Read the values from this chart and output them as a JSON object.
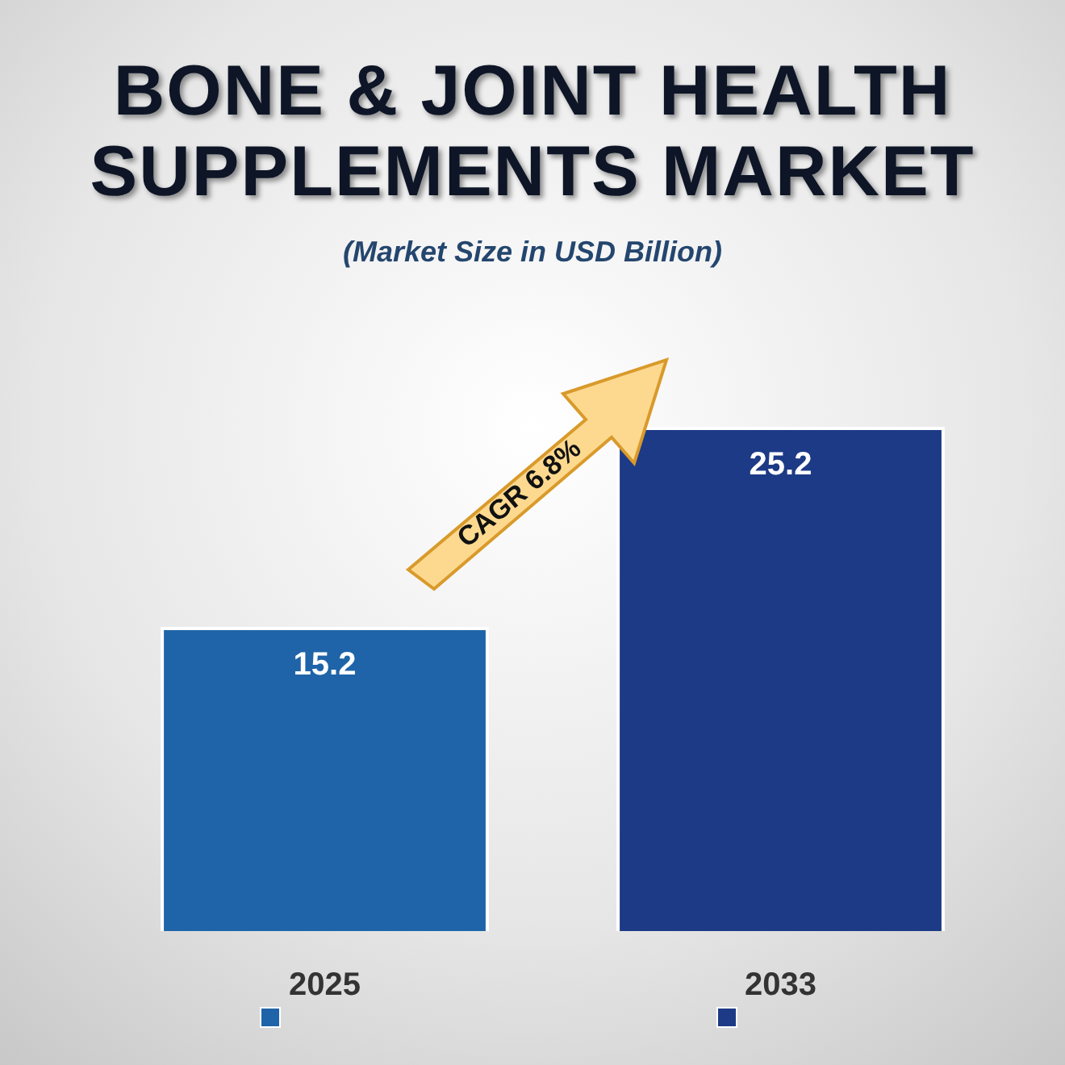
{
  "chart_data": {
    "type": "bar",
    "title": "BONE & JOINT HEALTH SUPPLEMENTS MARKET",
    "subtitle": "(Market Size in USD Billion)",
    "categories": [
      "2025",
      "2033"
    ],
    "values": [
      15.2,
      25.2
    ],
    "colors": [
      "#1f64a8",
      "#1d3a86"
    ],
    "data_labels": true,
    "legend": false,
    "grid": false,
    "annotations": [
      "CAGR 6.8%"
    ]
  }
}
